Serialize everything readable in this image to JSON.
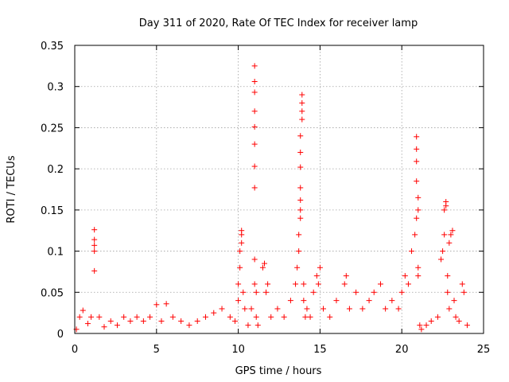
{
  "chart_data": {
    "type": "scatter",
    "title": "Day 311 of 2020, Rate Of TEC Index for receiver lamp",
    "xlabel": "GPS time / hours",
    "ylabel": "ROTI / TECUs",
    "xlim": [
      0,
      25
    ],
    "ylim": [
      0,
      0.35
    ],
    "xticks": [
      0,
      5,
      10,
      15,
      20,
      25
    ],
    "xtick_labels": [
      "0",
      "5",
      "10",
      "15",
      "20",
      "25"
    ],
    "yticks": [
      0,
      0.05,
      0.1,
      0.15,
      0.2,
      0.25,
      0.3,
      0.35
    ],
    "ytick_labels": [
      "0",
      "0.05",
      "0.1",
      "0.15",
      "0.2",
      "0.25",
      "0.3",
      "0.35"
    ],
    "grid": true,
    "marker": "+",
    "series": [
      {
        "name": "ROTI",
        "color": "#ff0000",
        "x": [
          0.1,
          0.3,
          0.5,
          0.8,
          1.0,
          1.2,
          1.2,
          1.2,
          1.2,
          1.2,
          1.5,
          1.8,
          2.2,
          2.6,
          3.0,
          3.4,
          3.8,
          4.2,
          4.6,
          5.0,
          5.3,
          5.6,
          6.0,
          6.5,
          7.0,
          7.5,
          8.0,
          8.5,
          9.0,
          9.5,
          9.8,
          10.0,
          10.0,
          10.1,
          10.1,
          10.2,
          10.2,
          10.2,
          10.3,
          10.4,
          10.6,
          10.8,
          11.0,
          11.0,
          11.0,
          11.0,
          11.0,
          11.0,
          11.0,
          11.0,
          11.0,
          11.0,
          11.1,
          11.1,
          11.2,
          11.5,
          11.6,
          11.7,
          11.8,
          12.0,
          12.4,
          12.8,
          13.2,
          13.5,
          13.6,
          13.7,
          13.7,
          13.8,
          13.8,
          13.8,
          13.8,
          13.8,
          13.8,
          13.8,
          13.9,
          13.9,
          13.9,
          13.9,
          14.0,
          14.0,
          14.1,
          14.2,
          14.4,
          14.6,
          14.8,
          14.9,
          15.0,
          15.2,
          15.6,
          16.0,
          16.5,
          16.6,
          16.8,
          17.2,
          17.6,
          18.0,
          18.3,
          18.7,
          19.0,
          19.4,
          19.8,
          20.0,
          20.2,
          20.4,
          20.6,
          20.8,
          20.9,
          20.9,
          20.9,
          20.9,
          20.9,
          21.0,
          21.0,
          21.0,
          21.0,
          21.1,
          21.2,
          21.5,
          21.8,
          22.2,
          22.4,
          22.5,
          22.6,
          22.6,
          22.7,
          22.7,
          22.8,
          22.8,
          22.9,
          22.9,
          23.0,
          23.1,
          23.2,
          23.3,
          23.5,
          23.7,
          23.8,
          24.0
        ],
        "y": [
          0.005,
          0.02,
          0.028,
          0.012,
          0.02,
          0.076,
          0.1,
          0.107,
          0.114,
          0.126,
          0.02,
          0.008,
          0.015,
          0.01,
          0.02,
          0.015,
          0.02,
          0.015,
          0.02,
          0.035,
          0.015,
          0.036,
          0.02,
          0.015,
          0.01,
          0.015,
          0.02,
          0.025,
          0.03,
          0.02,
          0.015,
          0.04,
          0.06,
          0.08,
          0.1,
          0.11,
          0.12,
          0.125,
          0.05,
          0.03,
          0.01,
          0.03,
          0.06,
          0.09,
          0.177,
          0.203,
          0.23,
          0.251,
          0.27,
          0.293,
          0.306,
          0.325,
          0.05,
          0.02,
          0.01,
          0.08,
          0.085,
          0.05,
          0.06,
          0.02,
          0.03,
          0.02,
          0.04,
          0.06,
          0.08,
          0.1,
          0.12,
          0.14,
          0.15,
          0.162,
          0.177,
          0.202,
          0.22,
          0.24,
          0.26,
          0.27,
          0.28,
          0.29,
          0.06,
          0.04,
          0.02,
          0.03,
          0.02,
          0.05,
          0.07,
          0.06,
          0.08,
          0.03,
          0.02,
          0.04,
          0.06,
          0.07,
          0.03,
          0.05,
          0.03,
          0.04,
          0.05,
          0.06,
          0.03,
          0.04,
          0.03,
          0.05,
          0.07,
          0.06,
          0.1,
          0.12,
          0.14,
          0.185,
          0.209,
          0.224,
          0.239,
          0.165,
          0.15,
          0.08,
          0.07,
          0.01,
          0.005,
          0.01,
          0.015,
          0.02,
          0.09,
          0.1,
          0.12,
          0.15,
          0.155,
          0.16,
          0.07,
          0.05,
          0.03,
          0.11,
          0.12,
          0.125,
          0.04,
          0.02,
          0.015,
          0.06,
          0.05,
          0.01
        ]
      }
    ]
  }
}
